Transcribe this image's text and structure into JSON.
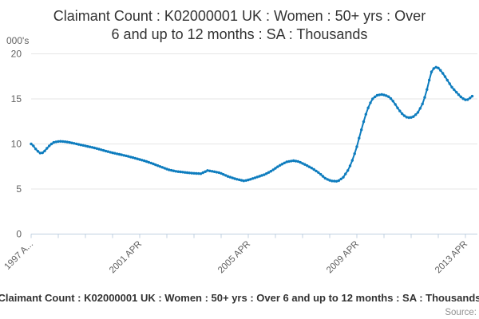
{
  "header": {
    "title_line1": "Claimant Count : K02000001 UK : Women : 50+ yrs : Over",
    "title_line2": "6 and up to 12 months : SA : Thousands",
    "y_axis_unit": "000's"
  },
  "footer": {
    "legend_label": "Claimant Count : K02000001 UK : Women : 50+ yrs : Over 6 and up to 12 months : SA : Thousands",
    "source_label": "Source:"
  },
  "colors": {
    "series_line": "#0d7cbe",
    "gridline": "#e6e6e6",
    "axis_line": "#c0d0e0",
    "axis_label": "#606060",
    "title_text": "#333333",
    "legend_text": "#333333",
    "source_text": "#909090"
  },
  "chart_data": {
    "type": "line",
    "title": "Claimant Count : K02000001 UK : Women : 50+ yrs : Over 6 and up to 12 months : SA : Thousands",
    "ylabel": "000's",
    "xlim": [
      1997.25,
      2013.67
    ],
    "ylim": [
      0,
      20
    ],
    "grid": true,
    "legend_position": "bottom",
    "marker": "circle",
    "sampling": "monthly, linearly interpolated from keypoints",
    "y_axis": {
      "ticks": [
        {
          "value": 0,
          "label": "0"
        },
        {
          "value": 5,
          "label": "5"
        },
        {
          "value": 10,
          "label": "10"
        },
        {
          "value": 15,
          "label": "15"
        },
        {
          "value": 20,
          "label": "20"
        }
      ]
    },
    "x_axis": {
      "tick_start_year": 1997.25,
      "tick_interval_years": 1,
      "tick_count": 17,
      "labels": [
        {
          "year": 1997.25,
          "text": "1997 A..."
        },
        {
          "year": 2001.25,
          "text": "2001 APR"
        },
        {
          "year": 2005.25,
          "text": "2005 APR"
        },
        {
          "year": 2009.25,
          "text": "2009 APR"
        },
        {
          "year": 2013.25,
          "text": "2013 APR"
        }
      ]
    },
    "series": [
      {
        "name": "Claimant Count : K02000001 UK : Women : 50+ yrs : Over 6 and up to 12 months : SA : Thousands",
        "color": "#0d7cbe",
        "keypoints": [
          [
            1997.25,
            10.0
          ],
          [
            1997.33,
            9.8
          ],
          [
            1997.45,
            9.3
          ],
          [
            1997.6,
            8.95
          ],
          [
            1997.7,
            9.05
          ],
          [
            1997.8,
            9.4
          ],
          [
            1997.95,
            9.9
          ],
          [
            1998.1,
            10.2
          ],
          [
            1998.3,
            10.3
          ],
          [
            1998.5,
            10.25
          ],
          [
            1998.7,
            10.15
          ],
          [
            1999.0,
            9.95
          ],
          [
            1999.3,
            9.75
          ],
          [
            1999.6,
            9.55
          ],
          [
            1999.9,
            9.3
          ],
          [
            2000.2,
            9.05
          ],
          [
            2000.5,
            8.85
          ],
          [
            2000.8,
            8.65
          ],
          [
            2001.1,
            8.4
          ],
          [
            2001.4,
            8.15
          ],
          [
            2001.7,
            7.85
          ],
          [
            2002.0,
            7.5
          ],
          [
            2002.3,
            7.15
          ],
          [
            2002.6,
            6.95
          ],
          [
            2002.9,
            6.85
          ],
          [
            2003.2,
            6.75
          ],
          [
            2003.5,
            6.7
          ],
          [
            2003.65,
            6.9
          ],
          [
            2003.75,
            7.05
          ],
          [
            2003.95,
            6.95
          ],
          [
            2004.2,
            6.8
          ],
          [
            2004.5,
            6.4
          ],
          [
            2004.8,
            6.1
          ],
          [
            2005.1,
            5.9
          ],
          [
            2005.3,
            6.05
          ],
          [
            2005.55,
            6.3
          ],
          [
            2005.85,
            6.6
          ],
          [
            2006.1,
            7.0
          ],
          [
            2006.4,
            7.6
          ],
          [
            2006.65,
            8.0
          ],
          [
            2006.9,
            8.15
          ],
          [
            2007.1,
            8.05
          ],
          [
            2007.35,
            7.7
          ],
          [
            2007.6,
            7.3
          ],
          [
            2007.85,
            6.8
          ],
          [
            2008.1,
            6.15
          ],
          [
            2008.3,
            5.9
          ],
          [
            2008.55,
            5.85
          ],
          [
            2008.75,
            6.3
          ],
          [
            2008.95,
            7.2
          ],
          [
            2009.1,
            8.3
          ],
          [
            2009.25,
            9.7
          ],
          [
            2009.4,
            11.4
          ],
          [
            2009.55,
            13.0
          ],
          [
            2009.7,
            14.3
          ],
          [
            2009.85,
            15.1
          ],
          [
            2010.0,
            15.4
          ],
          [
            2010.15,
            15.5
          ],
          [
            2010.3,
            15.4
          ],
          [
            2010.45,
            15.2
          ],
          [
            2010.6,
            14.7
          ],
          [
            2010.75,
            14.0
          ],
          [
            2010.9,
            13.4
          ],
          [
            2011.05,
            13.0
          ],
          [
            2011.2,
            12.9
          ],
          [
            2011.35,
            13.05
          ],
          [
            2011.5,
            13.5
          ],
          [
            2011.65,
            14.3
          ],
          [
            2011.8,
            15.6
          ],
          [
            2011.9,
            16.9
          ],
          [
            2012.0,
            18.0
          ],
          [
            2012.1,
            18.45
          ],
          [
            2012.2,
            18.55
          ],
          [
            2012.3,
            18.3
          ],
          [
            2012.45,
            17.7
          ],
          [
            2012.6,
            17.0
          ],
          [
            2012.75,
            16.3
          ],
          [
            2012.9,
            15.8
          ],
          [
            2013.05,
            15.3
          ],
          [
            2013.2,
            14.95
          ],
          [
            2013.3,
            14.85
          ],
          [
            2013.42,
            15.1
          ],
          [
            2013.58,
            15.5
          ]
        ]
      }
    ]
  }
}
